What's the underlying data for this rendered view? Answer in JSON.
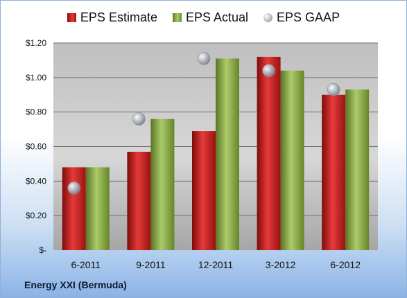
{
  "chart_data": {
    "type": "bar",
    "categories": [
      "6-2011",
      "9-2011",
      "12-2011",
      "3-2012",
      "6-2012"
    ],
    "series": [
      {
        "name": "EPS Estimate",
        "values": [
          0.48,
          0.57,
          0.69,
          1.12,
          0.9
        ],
        "color": "#c42020",
        "kind": "bar"
      },
      {
        "name": "EPS Actual",
        "values": [
          0.48,
          0.76,
          1.11,
          1.04,
          0.93
        ],
        "color": "#8aae45",
        "kind": "bar"
      },
      {
        "name": "EPS GAAP",
        "values": [
          0.36,
          0.76,
          1.11,
          1.04,
          0.93
        ],
        "color": "#b0b4bc",
        "kind": "marker"
      }
    ],
    "y_ticks": [
      "$-",
      "$0.20",
      "$0.40",
      "$0.60",
      "$0.80",
      "$1.00",
      "$1.20"
    ],
    "ylim": [
      0,
      1.2
    ],
    "grid": true,
    "legend_position": "top",
    "footer": "Energy XXI (Bermuda)"
  }
}
